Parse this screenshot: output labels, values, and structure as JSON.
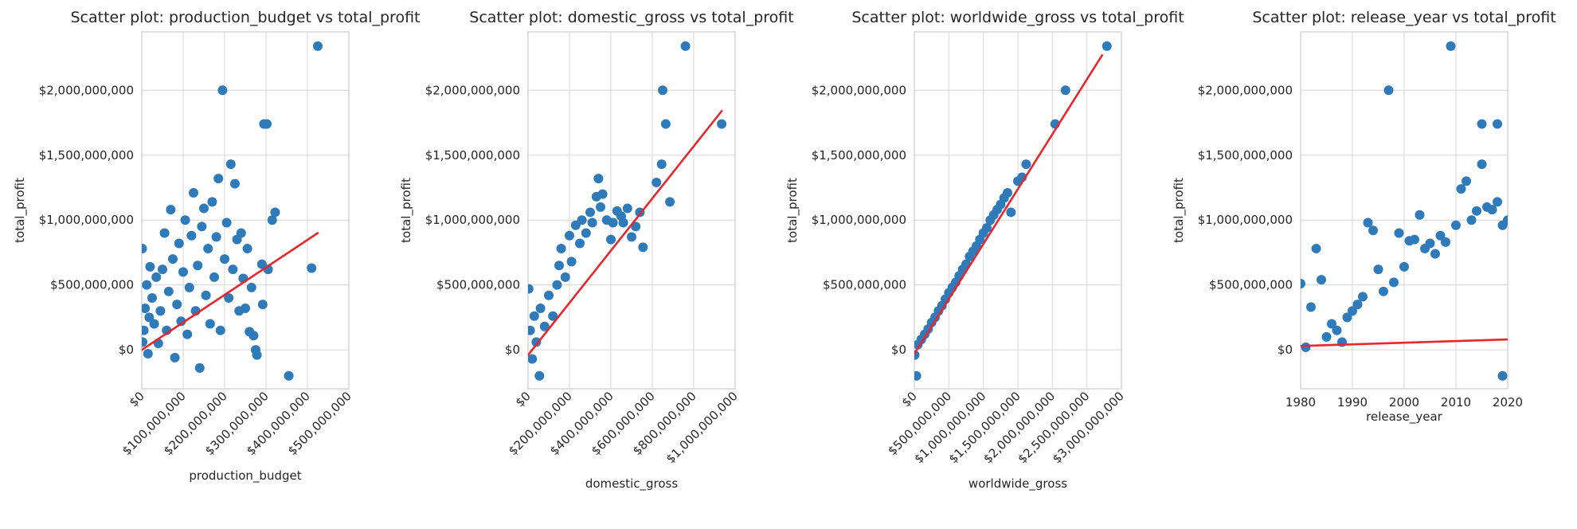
{
  "style": {
    "point_color": "#2f7ab9",
    "line_color": "#e8262d"
  },
  "chart_data": [
    {
      "type": "scatter",
      "title": "Scatter plot: production_budget vs total_profit",
      "xlabel": "production_budget",
      "ylabel": "total_profit",
      "xlim": [
        0,
        500000000
      ],
      "ylim": [
        -300000000,
        2450000000
      ],
      "xticks": [
        0,
        100000000,
        200000000,
        300000000,
        400000000,
        500000000
      ],
      "xtick_labels": [
        "$0",
        "$100,000,000",
        "$200,000,000",
        "$300,000,000",
        "$400,000,000",
        "$500,000,000"
      ],
      "xtick_rotation": 45,
      "yticks": [
        0,
        500000000,
        1000000000,
        1500000000,
        2000000000
      ],
      "ytick_labels": [
        "$0",
        "$500,000,000",
        "$1,000,000,000",
        "$1,500,000,000",
        "$2,000,000,000"
      ],
      "grid": true,
      "points": [
        [
          1000000,
          780000000
        ],
        [
          2000000,
          60000000
        ],
        [
          5000000,
          150000000
        ],
        [
          8000000,
          320000000
        ],
        [
          12000000,
          500000000
        ],
        [
          15000000,
          -30000000
        ],
        [
          18000000,
          250000000
        ],
        [
          20000000,
          640000000
        ],
        [
          25000000,
          400000000
        ],
        [
          30000000,
          200000000
        ],
        [
          35000000,
          560000000
        ],
        [
          40000000,
          50000000
        ],
        [
          45000000,
          300000000
        ],
        [
          50000000,
          620000000
        ],
        [
          55000000,
          900000000
        ],
        [
          60000000,
          150000000
        ],
        [
          65000000,
          450000000
        ],
        [
          70000000,
          1080000000
        ],
        [
          75000000,
          700000000
        ],
        [
          80000000,
          -60000000
        ],
        [
          85000000,
          350000000
        ],
        [
          90000000,
          820000000
        ],
        [
          95000000,
          220000000
        ],
        [
          100000000,
          600000000
        ],
        [
          105000000,
          1000000000
        ],
        [
          110000000,
          120000000
        ],
        [
          115000000,
          480000000
        ],
        [
          120000000,
          880000000
        ],
        [
          125000000,
          1210000000
        ],
        [
          130000000,
          300000000
        ],
        [
          135000000,
          650000000
        ],
        [
          140000000,
          -140000000
        ],
        [
          145000000,
          950000000
        ],
        [
          150000000,
          1090000000
        ],
        [
          155000000,
          420000000
        ],
        [
          160000000,
          780000000
        ],
        [
          165000000,
          200000000
        ],
        [
          170000000,
          1140000000
        ],
        [
          175000000,
          560000000
        ],
        [
          180000000,
          870000000
        ],
        [
          185000000,
          1320000000
        ],
        [
          190000000,
          150000000
        ],
        [
          195000000,
          2000000000
        ],
        [
          200000000,
          700000000
        ],
        [
          205000000,
          980000000
        ],
        [
          210000000,
          400000000
        ],
        [
          215000000,
          1430000000
        ],
        [
          220000000,
          620000000
        ],
        [
          225000000,
          1280000000
        ],
        [
          230000000,
          850000000
        ],
        [
          235000000,
          300000000
        ],
        [
          240000000,
          900000000
        ],
        [
          245000000,
          550000000
        ],
        [
          250000000,
          320000000
        ],
        [
          255000000,
          780000000
        ],
        [
          260000000,
          140000000
        ],
        [
          265000000,
          480000000
        ],
        [
          270000000,
          110000000
        ],
        [
          275000000,
          0
        ],
        [
          278000000,
          -40000000
        ],
        [
          290000000,
          660000000
        ],
        [
          292000000,
          350000000
        ],
        [
          295000000,
          1740000000
        ],
        [
          302000000,
          1740000000
        ],
        [
          305000000,
          620000000
        ],
        [
          315000000,
          1000000000
        ],
        [
          322000000,
          1060000000
        ],
        [
          355000000,
          -200000000
        ],
        [
          410000000,
          630000000
        ],
        [
          425000000,
          2340000000
        ]
      ],
      "cluster_note_free": true,
      "fit_line": [
        [
          0,
          0
        ],
        [
          425000000,
          900000000
        ]
      ]
    },
    {
      "type": "scatter",
      "title": "Scatter plot: domestic_gross vs total_profit",
      "xlabel": "domestic_gross",
      "ylabel": "total_profit",
      "xlim": [
        0,
        1000000000
      ],
      "ylim": [
        -300000000,
        2450000000
      ],
      "xticks": [
        0,
        200000000,
        400000000,
        600000000,
        800000000,
        1000000000
      ],
      "xtick_labels": [
        "$0",
        "$200,000,000",
        "$400,000,000",
        "$600,000,000",
        "$800,000,000",
        "$1,000,000,000"
      ],
      "xtick_rotation": 45,
      "yticks": [
        0,
        500000000,
        1000000000,
        1500000000,
        2000000000
      ],
      "ytick_labels": [
        "$0",
        "$500,000,000",
        "$1,000,000,000",
        "$1,500,000,000",
        "$2,000,000,000"
      ],
      "grid": true,
      "points": [
        [
          3000000,
          470000000
        ],
        [
          10000000,
          150000000
        ],
        [
          20000000,
          -70000000
        ],
        [
          30000000,
          260000000
        ],
        [
          40000000,
          60000000
        ],
        [
          55000000,
          -200000000
        ],
        [
          60000000,
          320000000
        ],
        [
          80000000,
          180000000
        ],
        [
          100000000,
          420000000
        ],
        [
          120000000,
          260000000
        ],
        [
          140000000,
          500000000
        ],
        [
          150000000,
          650000000
        ],
        [
          160000000,
          780000000
        ],
        [
          180000000,
          560000000
        ],
        [
          200000000,
          880000000
        ],
        [
          210000000,
          680000000
        ],
        [
          230000000,
          960000000
        ],
        [
          250000000,
          820000000
        ],
        [
          260000000,
          1000000000
        ],
        [
          280000000,
          900000000
        ],
        [
          300000000,
          1060000000
        ],
        [
          310000000,
          980000000
        ],
        [
          330000000,
          1180000000
        ],
        [
          340000000,
          1320000000
        ],
        [
          350000000,
          1100000000
        ],
        [
          360000000,
          1200000000
        ],
        [
          380000000,
          1000000000
        ],
        [
          400000000,
          850000000
        ],
        [
          410000000,
          980000000
        ],
        [
          430000000,
          1070000000
        ],
        [
          450000000,
          1030000000
        ],
        [
          460000000,
          980000000
        ],
        [
          480000000,
          1090000000
        ],
        [
          500000000,
          870000000
        ],
        [
          520000000,
          950000000
        ],
        [
          540000000,
          1060000000
        ],
        [
          555000000,
          790000000
        ],
        [
          620000000,
          1290000000
        ],
        [
          645000000,
          1430000000
        ],
        [
          650000000,
          2000000000
        ],
        [
          665000000,
          1740000000
        ],
        [
          685000000,
          1140000000
        ],
        [
          760000000,
          2340000000
        ],
        [
          935000000,
          1740000000
        ]
      ],
      "fit_line": [
        [
          0,
          -40000000
        ],
        [
          935000000,
          1840000000
        ]
      ]
    },
    {
      "type": "scatter",
      "title": "Scatter plot: worldwide_gross vs total_profit",
      "xlabel": "worldwide_gross",
      "ylabel": "total_profit",
      "xlim": [
        0,
        3000000000
      ],
      "ylim": [
        -300000000,
        2450000000
      ],
      "xticks": [
        0,
        500000000,
        1000000000,
        1500000000,
        2000000000,
        2500000000,
        3000000000
      ],
      "xtick_labels": [
        "$0",
        "$500,000,000",
        "$1,000,000,000",
        "$1,500,000,000",
        "$2,000,000,000",
        "$2,500,000,000",
        "$3,000,000,000"
      ],
      "xtick_rotation": 45,
      "yticks": [
        0,
        500000000,
        1000000000,
        1500000000,
        2000000000
      ],
      "ytick_labels": [
        "$0",
        "$500,000,000",
        "$1,000,000,000",
        "$1,500,000,000",
        "$2,000,000,000"
      ],
      "grid": true,
      "points": [
        [
          5000000,
          -40000000
        ],
        [
          30000000,
          -200000000
        ],
        [
          50000000,
          40000000
        ],
        [
          100000000,
          80000000
        ],
        [
          150000000,
          120000000
        ],
        [
          200000000,
          160000000
        ],
        [
          250000000,
          210000000
        ],
        [
          300000000,
          250000000
        ],
        [
          350000000,
          300000000
        ],
        [
          400000000,
          340000000
        ],
        [
          450000000,
          390000000
        ],
        [
          500000000,
          440000000
        ],
        [
          550000000,
          480000000
        ],
        [
          600000000,
          520000000
        ],
        [
          650000000,
          570000000
        ],
        [
          700000000,
          620000000
        ],
        [
          750000000,
          660000000
        ],
        [
          800000000,
          720000000
        ],
        [
          850000000,
          760000000
        ],
        [
          900000000,
          800000000
        ],
        [
          950000000,
          850000000
        ],
        [
          1000000000,
          900000000
        ],
        [
          1050000000,
          940000000
        ],
        [
          1100000000,
          1000000000
        ],
        [
          1150000000,
          1040000000
        ],
        [
          1200000000,
          1080000000
        ],
        [
          1250000000,
          1120000000
        ],
        [
          1300000000,
          1170000000
        ],
        [
          1350000000,
          1210000000
        ],
        [
          1400000000,
          1060000000
        ],
        [
          1500000000,
          1300000000
        ],
        [
          1560000000,
          1330000000
        ],
        [
          1620000000,
          1430000000
        ],
        [
          2040000000,
          1740000000
        ],
        [
          2190000000,
          2000000000
        ],
        [
          2790000000,
          2340000000
        ]
      ],
      "fit_line": [
        [
          0,
          -30000000
        ],
        [
          2720000000,
          2270000000
        ]
      ]
    },
    {
      "type": "scatter",
      "title": "Scatter plot: release_year vs total_profit",
      "xlabel": "release_year",
      "ylabel": "total_profit",
      "xlim": [
        1980,
        2020
      ],
      "ylim": [
        -300000000,
        2450000000
      ],
      "xticks": [
        1980,
        1990,
        2000,
        2010,
        2020
      ],
      "xtick_labels": [
        "1980",
        "1990",
        "2000",
        "2010",
        "2020"
      ],
      "xtick_rotation": 0,
      "yticks": [
        0,
        500000000,
        1000000000,
        1500000000,
        2000000000
      ],
      "ytick_labels": [
        "$0",
        "$500,000,000",
        "$1,000,000,000",
        "$1,500,000,000",
        "$2,000,000,000"
      ],
      "grid": true,
      "points": [
        [
          1980,
          510000000
        ],
        [
          1981,
          20000000
        ],
        [
          1982,
          330000000
        ],
        [
          1983,
          780000000
        ],
        [
          1984,
          540000000
        ],
        [
          1985,
          100000000
        ],
        [
          1986,
          200000000
        ],
        [
          1987,
          150000000
        ],
        [
          1988,
          60000000
        ],
        [
          1989,
          250000000
        ],
        [
          1990,
          300000000
        ],
        [
          1991,
          350000000
        ],
        [
          1992,
          410000000
        ],
        [
          1993,
          980000000
        ],
        [
          1994,
          920000000
        ],
        [
          1995,
          620000000
        ],
        [
          1996,
          450000000
        ],
        [
          1997,
          2000000000
        ],
        [
          1998,
          520000000
        ],
        [
          1999,
          900000000
        ],
        [
          2000,
          640000000
        ],
        [
          2001,
          840000000
        ],
        [
          2002,
          850000000
        ],
        [
          2003,
          1040000000
        ],
        [
          2004,
          780000000
        ],
        [
          2005,
          820000000
        ],
        [
          2006,
          740000000
        ],
        [
          2007,
          880000000
        ],
        [
          2008,
          830000000
        ],
        [
          2009,
          2340000000
        ],
        [
          2010,
          960000000
        ],
        [
          2011,
          1240000000
        ],
        [
          2012,
          1300000000
        ],
        [
          2013,
          1000000000
        ],
        [
          2014,
          1070000000
        ],
        [
          2015,
          1740000000
        ],
        [
          2015,
          1430000000
        ],
        [
          2016,
          1100000000
        ],
        [
          2017,
          1080000000
        ],
        [
          2018,
          1740000000
        ],
        [
          2018,
          1140000000
        ],
        [
          2019,
          960000000
        ],
        [
          2019,
          -200000000
        ],
        [
          2020,
          1000000000
        ]
      ],
      "fit_line": [
        [
          1980,
          30000000
        ],
        [
          2020,
          80000000
        ]
      ]
    }
  ]
}
